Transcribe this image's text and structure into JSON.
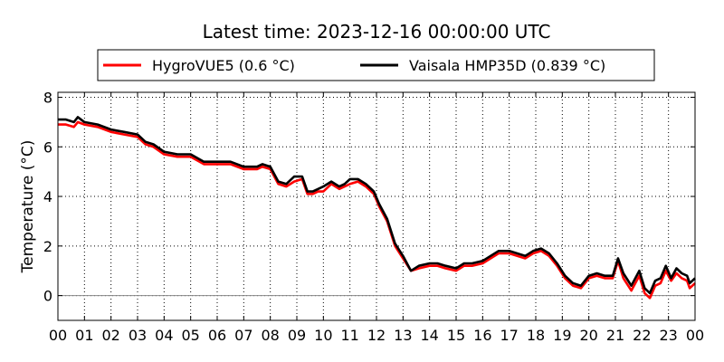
{
  "chart_data": {
    "type": "line",
    "title": "Latest time: 2023-12-16 00:00:00 UTC",
    "xlabel": "",
    "ylabel": "Temperature (°C)",
    "xlim": [
      0,
      24
    ],
    "ylim": [
      -1,
      8.2
    ],
    "x_ticks": [
      "00",
      "01",
      "02",
      "03",
      "04",
      "05",
      "06",
      "07",
      "08",
      "09",
      "10",
      "11",
      "12",
      "13",
      "14",
      "15",
      "16",
      "17",
      "18",
      "19",
      "20",
      "21",
      "22",
      "23",
      "00"
    ],
    "y_ticks": [
      0,
      2,
      4,
      6,
      8
    ],
    "grid": true,
    "legend_placement": "top-center",
    "reference_line": 0,
    "x_unit": "hour (UTC)",
    "series": [
      {
        "name": "HygroVUE5 (0.6 °C)",
        "color": "#ff0000",
        "x": [
          0,
          0.3,
          0.6,
          0.75,
          1,
          1.5,
          2,
          2.5,
          3,
          3.3,
          3.6,
          4,
          4.5,
          5,
          5.5,
          6,
          6.5,
          7,
          7.5,
          7.7,
          8,
          8.3,
          8.6,
          8.9,
          9.2,
          9.4,
          9.6,
          9.8,
          10,
          10.3,
          10.6,
          10.8,
          11,
          11.3,
          11.6,
          11.9,
          12.1,
          12.4,
          12.7,
          13,
          13.3,
          13.6,
          14,
          14.3,
          14.6,
          15,
          15.3,
          15.6,
          16,
          16.3,
          16.6,
          17,
          17.3,
          17.6,
          17.9,
          18.2,
          18.5,
          18.8,
          19.1,
          19.4,
          19.7,
          20,
          20.3,
          20.6,
          20.9,
          21.1,
          21.3,
          21.6,
          21.9,
          22.1,
          22.3,
          22.5,
          22.7,
          22.9,
          23.1,
          23.3,
          23.5,
          23.7,
          23.8,
          24
        ],
        "y": [
          6.9,
          6.9,
          6.8,
          7.0,
          6.9,
          6.8,
          6.6,
          6.5,
          6.4,
          6.1,
          6.0,
          5.7,
          5.6,
          5.6,
          5.3,
          5.3,
          5.3,
          5.1,
          5.1,
          5.2,
          5.1,
          4.5,
          4.4,
          4.6,
          4.7,
          4.1,
          4.1,
          4.2,
          4.2,
          4.5,
          4.3,
          4.4,
          4.5,
          4.6,
          4.4,
          4.1,
          3.6,
          3.0,
          2.0,
          1.5,
          1.0,
          1.1,
          1.2,
          1.2,
          1.1,
          1.0,
          1.2,
          1.2,
          1.3,
          1.5,
          1.7,
          1.7,
          1.6,
          1.5,
          1.7,
          1.8,
          1.6,
          1.2,
          0.7,
          0.4,
          0.3,
          0.7,
          0.8,
          0.7,
          0.7,
          1.4,
          0.7,
          0.2,
          0.8,
          0.1,
          -0.1,
          0.4,
          0.5,
          1.0,
          0.6,
          0.9,
          0.7,
          0.6,
          0.3,
          0.5
        ]
      },
      {
        "name": "Vaisala HMP35D (0.839 °C)",
        "color": "#000000",
        "x": [
          0,
          0.3,
          0.6,
          0.75,
          1,
          1.5,
          2,
          2.5,
          3,
          3.3,
          3.6,
          4,
          4.5,
          5,
          5.5,
          6,
          6.5,
          7,
          7.5,
          7.7,
          8,
          8.3,
          8.6,
          8.9,
          9.2,
          9.4,
          9.6,
          9.8,
          10,
          10.3,
          10.6,
          10.8,
          11,
          11.3,
          11.6,
          11.9,
          12.1,
          12.4,
          12.7,
          13,
          13.3,
          13.6,
          14,
          14.3,
          14.6,
          15,
          15.3,
          15.6,
          16,
          16.3,
          16.6,
          17,
          17.3,
          17.6,
          17.9,
          18.2,
          18.5,
          18.8,
          19.1,
          19.4,
          19.7,
          20,
          20.3,
          20.6,
          20.9,
          21.1,
          21.3,
          21.6,
          21.9,
          22.1,
          22.3,
          22.5,
          22.7,
          22.9,
          23.1,
          23.3,
          23.5,
          23.7,
          23.8,
          24
        ],
        "y": [
          7.1,
          7.1,
          7.0,
          7.2,
          7.0,
          6.9,
          6.7,
          6.6,
          6.5,
          6.2,
          6.1,
          5.8,
          5.7,
          5.7,
          5.4,
          5.4,
          5.4,
          5.2,
          5.2,
          5.3,
          5.2,
          4.6,
          4.5,
          4.8,
          4.8,
          4.2,
          4.2,
          4.3,
          4.4,
          4.6,
          4.4,
          4.5,
          4.7,
          4.7,
          4.5,
          4.2,
          3.7,
          3.1,
          2.1,
          1.6,
          1.0,
          1.2,
          1.3,
          1.3,
          1.2,
          1.1,
          1.3,
          1.3,
          1.4,
          1.6,
          1.8,
          1.8,
          1.7,
          1.6,
          1.8,
          1.9,
          1.7,
          1.3,
          0.8,
          0.5,
          0.4,
          0.8,
          0.9,
          0.8,
          0.8,
          1.5,
          0.9,
          0.4,
          1.0,
          0.3,
          0.1,
          0.6,
          0.7,
          1.2,
          0.7,
          1.1,
          0.9,
          0.8,
          0.5,
          0.7
        ]
      }
    ]
  }
}
